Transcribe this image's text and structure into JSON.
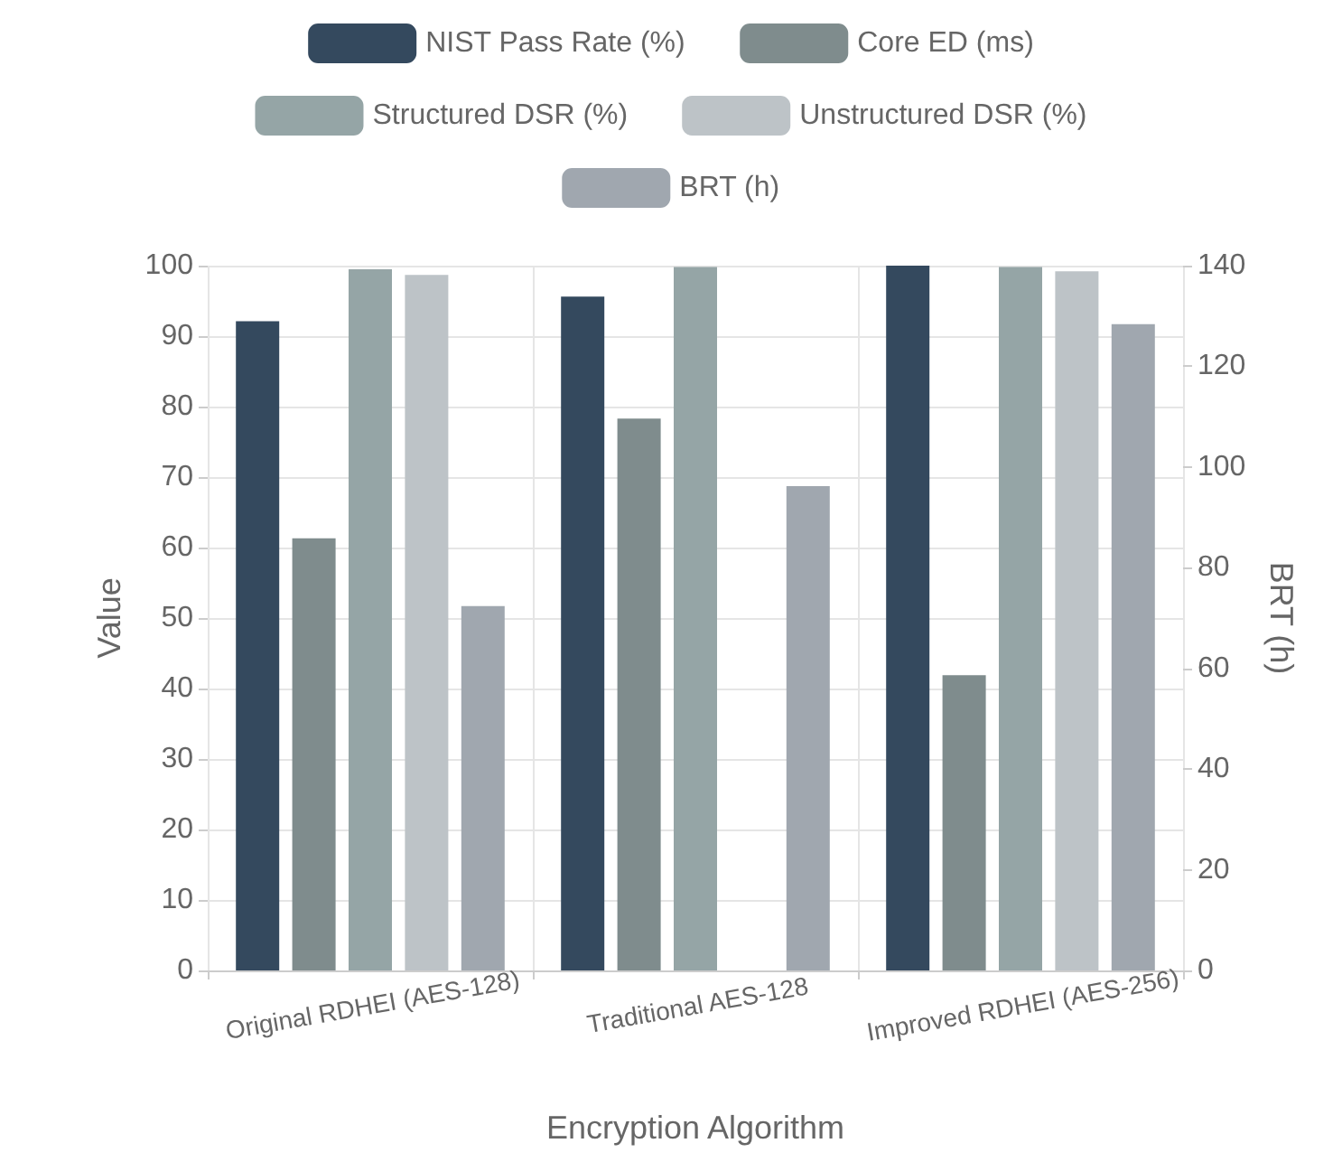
{
  "chart_data": {
    "type": "bar",
    "categories": [
      "Original RDHEI (AES-128)",
      "Traditional AES-128",
      "Improved RDHEI (AES-256)"
    ],
    "series": [
      {
        "name": "NIST Pass Rate (%)",
        "color": "#34495e",
        "values": [
          92.1,
          95.6,
          100
        ]
      },
      {
        "name": "Core ED (ms)",
        "color": "#7f8c8d",
        "values": [
          61.3,
          78.3,
          41.9
        ]
      },
      {
        "name": "Structured DSR (%)",
        "color": "#95a5a6",
        "values": [
          99.5,
          99.8,
          99.8
        ]
      },
      {
        "name": "Unstructured DSR (%)",
        "color": "#bdc3c7",
        "values": [
          98.7,
          null,
          99.2
        ]
      },
      {
        "name": "BRT (h)",
        "color": "#a0a7af",
        "values": [
          72.4,
          96.2,
          128.4
        ],
        "axis": "y2"
      }
    ],
    "xlabel": "Encryption Algorithm",
    "ylabel": "Value",
    "y2label": "BRT (h)",
    "ylim": [
      0,
      100
    ],
    "yticks": [
      0,
      10,
      20,
      30,
      40,
      50,
      60,
      70,
      80,
      90,
      100
    ],
    "y2lim": [
      0,
      140
    ],
    "y2ticks": [
      0,
      20,
      40,
      60,
      80,
      100,
      120,
      140
    ],
    "grid": true,
    "legend": "top"
  }
}
